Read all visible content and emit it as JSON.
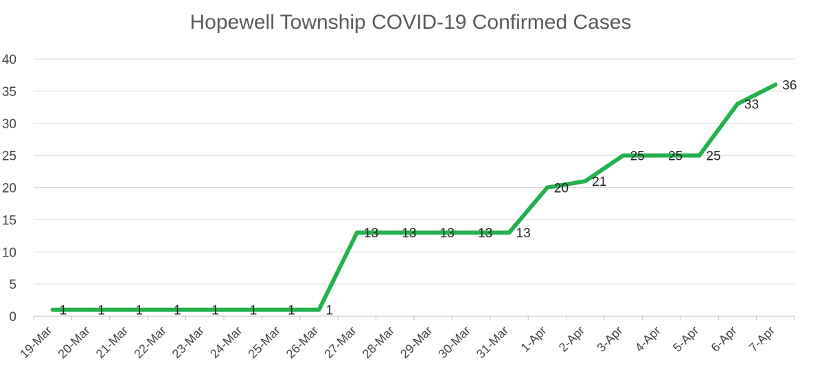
{
  "chart_data": {
    "type": "line",
    "title": "Hopewell Township COVID-19 Confirmed Cases",
    "xlabel": "",
    "ylabel": "",
    "ylim": [
      0,
      40
    ],
    "yticks": [
      0,
      5,
      10,
      15,
      20,
      25,
      30,
      35,
      40
    ],
    "grid": true,
    "categories": [
      "19-Mar",
      "20-Mar",
      "21-Mar",
      "22-Mar",
      "23-Mar",
      "24-Mar",
      "25-Mar",
      "26-Mar",
      "27-Mar",
      "28-Mar",
      "29-Mar",
      "30-Mar",
      "31-Mar",
      "1-Apr",
      "2-Apr",
      "3-Apr",
      "4-Apr",
      "5-Apr",
      "6-Apr",
      "7-Apr"
    ],
    "series": [
      {
        "values": [
          1,
          1,
          1,
          1,
          1,
          1,
          1,
          1,
          13,
          13,
          13,
          13,
          13,
          20,
          21,
          25,
          25,
          25,
          33,
          36
        ],
        "color": "#22b14c"
      }
    ],
    "data_labels": [
      "1",
      "1",
      "1",
      "1",
      "1",
      "1",
      "1",
      "1",
      "13",
      "13",
      "13",
      "13",
      "13",
      "20",
      "21",
      "25",
      "25",
      "25",
      "33",
      "36"
    ]
  }
}
